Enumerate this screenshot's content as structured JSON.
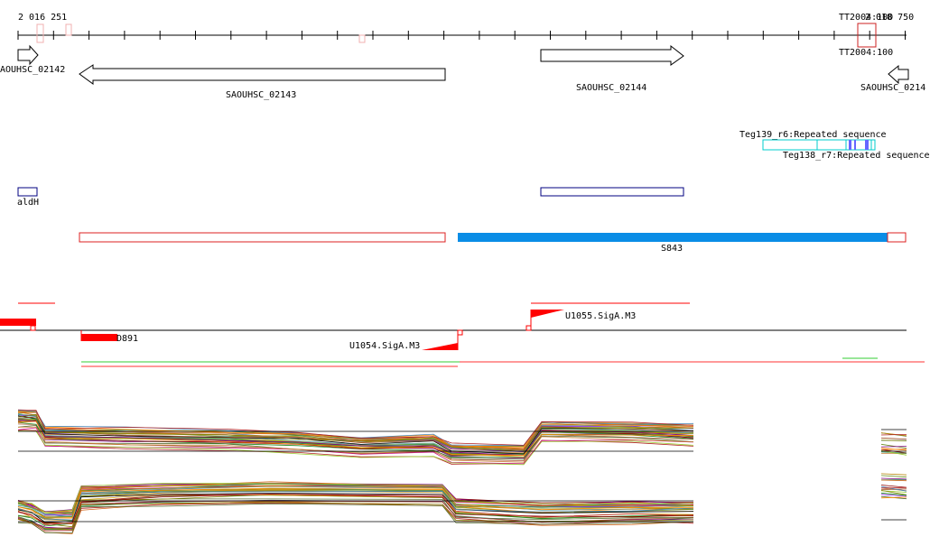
{
  "ruler": {
    "start_label": "2 016 251",
    "end_label": "2 018 750",
    "marker_label_top": "TT2004:100",
    "marker_label_bottom": "TT2004:100"
  },
  "genes": {
    "left_partial": "AOUHSC_02142",
    "g02143": "SAOUHSC_02143",
    "g02144": "SAOUHSC_02144",
    "right_partial": "SAOUHSC_0214"
  },
  "repeats": {
    "top_label": "Teg139_r6:Repeated sequence",
    "bottom_label": "Teg138_r7:Repeated sequence"
  },
  "aldh": {
    "label": "aldH"
  },
  "segment": {
    "label": "S843"
  },
  "features": {
    "d891": "D891",
    "u1054": "U1054.SigA.M3",
    "u1055": "U1055.SigA.M3"
  },
  "colors": {
    "gene_outline": "#000000",
    "repeat": "#00cccc",
    "aldh": "#000080",
    "segment_fill": "#0a8de6",
    "segment_outline": "#dd2222",
    "feature_red": "#ff0000",
    "profile_green": "#33cc33"
  }
}
